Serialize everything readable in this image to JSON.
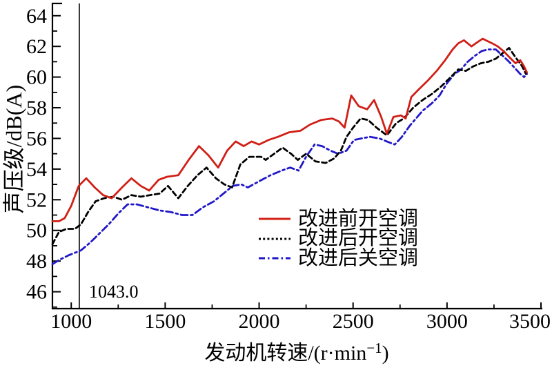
{
  "chart_data": {
    "type": "line",
    "title": "",
    "xlabel": "发动机转速/(r·min⁻¹)",
    "xlabel_parts": {
      "pre": "发动机转速/(r·min",
      "sup": "−1",
      "post": ")"
    },
    "ylabel": "声压级/dB(A)",
    "xlim": [
      900,
      3500
    ],
    "ylim": [
      44.9,
      64.8
    ],
    "x_ticks": [
      1000,
      1500,
      2000,
      2500,
      3000,
      3500
    ],
    "x_minor_ticks": [
      1250,
      1750,
      2250,
      2750,
      3250
    ],
    "y_ticks": [
      46,
      48,
      50,
      52,
      54,
      56,
      58,
      60,
      62,
      64
    ],
    "y_minor_ticks": [
      45,
      47,
      49,
      51,
      53,
      55,
      57,
      59,
      61,
      63
    ],
    "grid": false,
    "legend_position": "lower-center-right, no frame",
    "annotations": [
      {
        "type": "vline",
        "x": 1043,
        "label": "1043.0"
      }
    ],
    "series": [
      {
        "id": "before-ac-on",
        "name": "改进前开空调",
        "color": "#d01f16",
        "line_style": "solid",
        "dash": "",
        "legend_dash": "",
        "points": [
          [
            900,
            50.6
          ],
          [
            935,
            50.6
          ],
          [
            965,
            50.8
          ],
          [
            1000,
            51.6
          ],
          [
            1040,
            52.9
          ],
          [
            1080,
            53.4
          ],
          [
            1125,
            52.8
          ],
          [
            1170,
            52.3
          ],
          [
            1215,
            52.1
          ],
          [
            1270,
            52.8
          ],
          [
            1320,
            53.4
          ],
          [
            1370,
            52.9
          ],
          [
            1415,
            52.6
          ],
          [
            1465,
            53.3
          ],
          [
            1510,
            53.5
          ],
          [
            1570,
            53.6
          ],
          [
            1625,
            54.6
          ],
          [
            1680,
            55.5
          ],
          [
            1730,
            54.9
          ],
          [
            1782,
            54.1
          ],
          [
            1830,
            55.2
          ],
          [
            1875,
            55.8
          ],
          [
            1918,
            55.5
          ],
          [
            1960,
            55.8
          ],
          [
            2000,
            55.6
          ],
          [
            2050,
            55.9
          ],
          [
            2100,
            56.1
          ],
          [
            2160,
            56.4
          ],
          [
            2220,
            56.5
          ],
          [
            2270,
            56.9
          ],
          [
            2330,
            57.2
          ],
          [
            2390,
            57.3
          ],
          [
            2425,
            57.1
          ],
          [
            2455,
            56.7
          ],
          [
            2490,
            58.8
          ],
          [
            2530,
            58.1
          ],
          [
            2575,
            57.9
          ],
          [
            2612,
            58.5
          ],
          [
            2650,
            57.4
          ],
          [
            2680,
            56.3
          ],
          [
            2715,
            57.4
          ],
          [
            2755,
            57.5
          ],
          [
            2780,
            57.3
          ],
          [
            2810,
            58.7
          ],
          [
            2850,
            59.2
          ],
          [
            2900,
            59.8
          ],
          [
            2945,
            60.4
          ],
          [
            2990,
            61.1
          ],
          [
            3030,
            61.8
          ],
          [
            3060,
            62.2
          ],
          [
            3090,
            62.4
          ],
          [
            3130,
            62.0
          ],
          [
            3165,
            62.3
          ],
          [
            3190,
            62.5
          ],
          [
            3240,
            62.2
          ],
          [
            3270,
            62.0
          ],
          [
            3300,
            61.7
          ],
          [
            3340,
            61.2
          ],
          [
            3365,
            60.9
          ],
          [
            3390,
            61.1
          ],
          [
            3410,
            60.7
          ],
          [
            3425,
            60.3
          ]
        ]
      },
      {
        "id": "after-ac-on",
        "name": "改进后开空调",
        "color": "#000000",
        "line_style": "dashed",
        "dash": "7 4.5",
        "legend_dash": "3 3.2",
        "points": [
          [
            900,
            49.1
          ],
          [
            935,
            49.9
          ],
          [
            975,
            50.1
          ],
          [
            1020,
            50.1
          ],
          [
            1052,
            50.4
          ],
          [
            1090,
            51.2
          ],
          [
            1130,
            51.9
          ],
          [
            1175,
            52.1
          ],
          [
            1225,
            52.2
          ],
          [
            1270,
            52.0
          ],
          [
            1320,
            52.3
          ],
          [
            1370,
            52.2
          ],
          [
            1420,
            52.3
          ],
          [
            1470,
            52.4
          ],
          [
            1515,
            52.9
          ],
          [
            1570,
            52.1
          ],
          [
            1620,
            52.9
          ],
          [
            1672,
            53.6
          ],
          [
            1720,
            54.1
          ],
          [
            1770,
            53.4
          ],
          [
            1815,
            53.0
          ],
          [
            1856,
            52.8
          ],
          [
            1900,
            54.3
          ],
          [
            1948,
            54.8
          ],
          [
            2010,
            54.8
          ],
          [
            2035,
            54.6
          ],
          [
            2080,
            55.0
          ],
          [
            2125,
            55.4
          ],
          [
            2170,
            55.0
          ],
          [
            2206,
            54.6
          ],
          [
            2250,
            55.0
          ],
          [
            2300,
            54.5
          ],
          [
            2355,
            54.4
          ],
          [
            2400,
            54.7
          ],
          [
            2435,
            55.2
          ],
          [
            2465,
            56.1
          ],
          [
            2500,
            56.7
          ],
          [
            2540,
            57.3
          ],
          [
            2580,
            57.2
          ],
          [
            2625,
            56.7
          ],
          [
            2680,
            56.2
          ],
          [
            2730,
            57.0
          ],
          [
            2770,
            57.3
          ],
          [
            2820,
            58.0
          ],
          [
            2870,
            58.5
          ],
          [
            2920,
            58.9
          ],
          [
            2970,
            59.4
          ],
          [
            3020,
            60.0
          ],
          [
            3060,
            60.5
          ],
          [
            3100,
            60.4
          ],
          [
            3140,
            60.7
          ],
          [
            3180,
            60.9
          ],
          [
            3220,
            61.0
          ],
          [
            3260,
            61.2
          ],
          [
            3300,
            61.6
          ],
          [
            3330,
            61.9
          ],
          [
            3370,
            61.2
          ],
          [
            3400,
            60.7
          ],
          [
            3420,
            60.2
          ]
        ]
      },
      {
        "id": "after-ac-off",
        "name": "改进后关空调",
        "color": "#2018c8",
        "line_style": "dash-dot",
        "dash": "10 4.5 3 4.5",
        "legend_dash": "9 4 2.5 4",
        "points": [
          [
            900,
            47.8
          ],
          [
            940,
            48.1
          ],
          [
            990,
            48.4
          ],
          [
            1052,
            48.7
          ],
          [
            1100,
            49.2
          ],
          [
            1150,
            49.8
          ],
          [
            1200,
            50.4
          ],
          [
            1250,
            51.1
          ],
          [
            1300,
            51.7
          ],
          [
            1350,
            51.7
          ],
          [
            1410,
            51.5
          ],
          [
            1470,
            51.3
          ],
          [
            1530,
            51.2
          ],
          [
            1590,
            51.0
          ],
          [
            1645,
            51.0
          ],
          [
            1700,
            51.5
          ],
          [
            1760,
            51.9
          ],
          [
            1820,
            52.5
          ],
          [
            1860,
            52.9
          ],
          [
            1905,
            53.0
          ],
          [
            1940,
            52.8
          ],
          [
            2000,
            53.2
          ],
          [
            2060,
            53.6
          ],
          [
            2120,
            53.9
          ],
          [
            2165,
            54.1
          ],
          [
            2210,
            53.9
          ],
          [
            2250,
            54.8
          ],
          [
            2295,
            55.6
          ],
          [
            2335,
            55.5
          ],
          [
            2380,
            55.2
          ],
          [
            2420,
            55.0
          ],
          [
            2465,
            55.2
          ],
          [
            2505,
            55.9
          ],
          [
            2545,
            56.0
          ],
          [
            2590,
            56.1
          ],
          [
            2640,
            56.0
          ],
          [
            2680,
            55.8
          ],
          [
            2722,
            55.6
          ],
          [
            2760,
            56.1
          ],
          [
            2800,
            56.8
          ],
          [
            2835,
            57.3
          ],
          [
            2870,
            57.8
          ],
          [
            2920,
            58.3
          ],
          [
            2960,
            58.8
          ],
          [
            3000,
            59.6
          ],
          [
            3040,
            60.2
          ],
          [
            3075,
            60.5
          ],
          [
            3110,
            61.0
          ],
          [
            3150,
            61.4
          ],
          [
            3185,
            61.7
          ],
          [
            3220,
            61.8
          ],
          [
            3260,
            61.8
          ],
          [
            3295,
            61.4
          ],
          [
            3330,
            61.0
          ],
          [
            3360,
            60.6
          ],
          [
            3390,
            60.2
          ],
          [
            3410,
            60.0
          ],
          [
            3425,
            60.2
          ]
        ]
      }
    ]
  }
}
